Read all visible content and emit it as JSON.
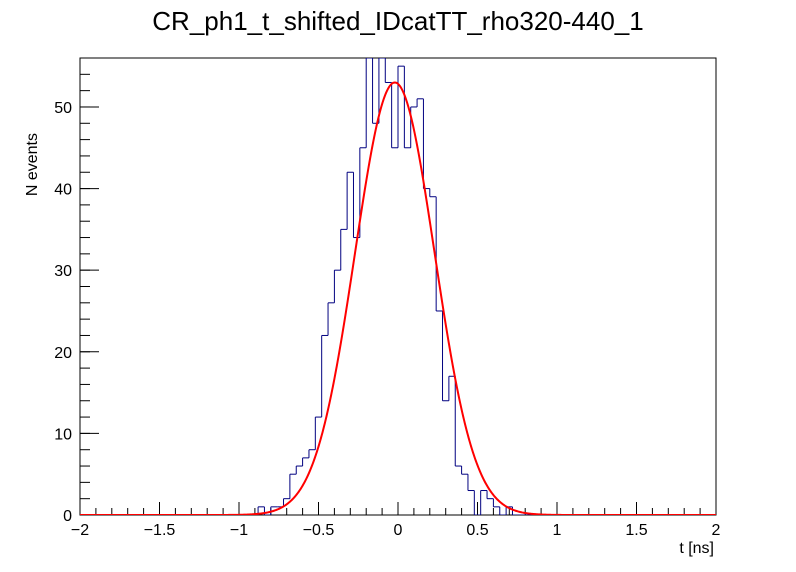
{
  "chart_data": {
    "type": "histogram",
    "title": "CR_ph1_t_shifted_IDcatTT_rho320-440_1",
    "xlabel": "t [ns]",
    "ylabel": "N events",
    "xlim": [
      -2,
      2
    ],
    "ylim": [
      0,
      56
    ],
    "x_ticks": [
      -2,
      -1.5,
      -1,
      -0.5,
      0,
      0.5,
      1,
      1.5,
      2
    ],
    "x_tick_labels": [
      "−2",
      "−1.5",
      "−1",
      "−0.5",
      "0",
      "0.5",
      "1",
      "1.5",
      "2"
    ],
    "y_ticks": [
      0,
      10,
      20,
      30,
      40,
      50
    ],
    "y_tick_labels": [
      "0",
      "10",
      "20",
      "30",
      "40",
      "50"
    ],
    "grid": false,
    "legend": false,
    "histogram": {
      "color": "#000080",
      "bin_width": 0.04,
      "bin_low_edges": [
        -0.92,
        -0.88,
        -0.84,
        -0.8,
        -0.76,
        -0.72,
        -0.68,
        -0.64,
        -0.6,
        -0.56,
        -0.52,
        -0.48,
        -0.44,
        -0.4,
        -0.36,
        -0.32,
        -0.28,
        -0.24,
        -0.2,
        -0.16,
        -0.12,
        -0.08,
        -0.04,
        0.0,
        0.04,
        0.08,
        0.12,
        0.16,
        0.2,
        0.24,
        0.28,
        0.32,
        0.36,
        0.4,
        0.44,
        0.48,
        0.52,
        0.56,
        0.6,
        0.64,
        0.68,
        0.72,
        0.76,
        0.8,
        0.84
      ],
      "counts": [
        0,
        1,
        0,
        1,
        1,
        2,
        5,
        6,
        7,
        8,
        12,
        22,
        26,
        30,
        35,
        42,
        34,
        45,
        56,
        48,
        56,
        53,
        45,
        55,
        45,
        50,
        51,
        40,
        39,
        25,
        14,
        17,
        6,
        5,
        3,
        0,
        3,
        2,
        1,
        0,
        1,
        0,
        0,
        0,
        0
      ]
    },
    "fit": {
      "color": "#ff0000",
      "function": "gaus",
      "amplitude": 53.0,
      "mean": -0.02,
      "sigma": 0.25
    }
  }
}
